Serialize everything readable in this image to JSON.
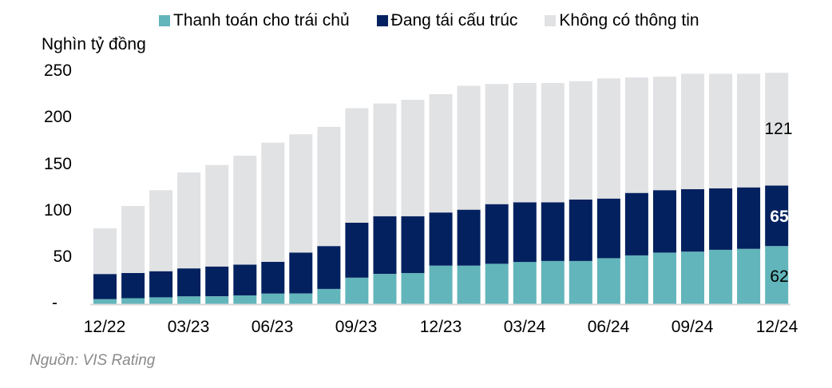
{
  "legend": {
    "items": [
      {
        "label": "Thanh toán cho trái chủ",
        "color": "#62B5BA"
      },
      {
        "label": "Đang tái cấu trúc",
        "color": "#03215F"
      },
      {
        "label": "Không có thông tin",
        "color": "#E1E2E4"
      }
    ]
  },
  "axis": {
    "unit_label": "Nghìn tỷ đồng",
    "y_ticks": [
      "250",
      "200",
      "150",
      "100",
      "50",
      "-"
    ],
    "x_ticks": [
      "12/22",
      "03/23",
      "06/23",
      "09/23",
      "12/23",
      "03/24",
      "06/24",
      "09/24",
      "12/24"
    ]
  },
  "data_labels": {
    "gray": "121",
    "navy": "65",
    "teal": "62"
  },
  "source": "Nguồn: VIS Rating",
  "chart_data": {
    "type": "bar",
    "stacked": true,
    "title": "",
    "xlabel": "",
    "ylabel": "Nghìn tỷ đồng",
    "ylim": [
      0,
      250
    ],
    "yticks": [
      0,
      50,
      100,
      150,
      200,
      250
    ],
    "grid": false,
    "legend_position": "top",
    "categories": [
      "12/22",
      "01/23",
      "02/23",
      "03/23",
      "04/23",
      "05/23",
      "06/23",
      "07/23",
      "08/23",
      "09/23",
      "10/23",
      "11/23",
      "12/23",
      "01/24",
      "02/24",
      "03/24",
      "04/24",
      "05/24",
      "06/24",
      "07/24",
      "08/24",
      "09/24",
      "10/24",
      "11/24",
      "12/24"
    ],
    "series": [
      {
        "name": "Thanh toán cho trái chủ",
        "color": "#62B5BA",
        "values": [
          5,
          6,
          7,
          8,
          8,
          9,
          11,
          11,
          16,
          28,
          32,
          33,
          41,
          41,
          43,
          45,
          46,
          46,
          49,
          52,
          55,
          56,
          58,
          59,
          62
        ]
      },
      {
        "name": "Đang tái cấu trúc",
        "color": "#03215F",
        "values": [
          27,
          27,
          28,
          30,
          32,
          33,
          34,
          44,
          46,
          59,
          62,
          61,
          57,
          60,
          64,
          64,
          63,
          66,
          64,
          67,
          67,
          67,
          66,
          66,
          65
        ]
      },
      {
        "name": "Không có thông tin",
        "color": "#E1E2E4",
        "values": [
          49,
          72,
          87,
          103,
          109,
          117,
          128,
          127,
          128,
          123,
          121,
          125,
          127,
          133,
          129,
          128,
          128,
          127,
          129,
          124,
          122,
          124,
          123,
          122,
          121
        ]
      }
    ],
    "annotations": [
      {
        "category": "12/24",
        "series": "Không có thông tin",
        "text": "121"
      },
      {
        "category": "12/24",
        "series": "Đang tái cấu trúc",
        "text": "65"
      },
      {
        "category": "12/24",
        "series": "Thanh toán cho trái chủ",
        "text": "62"
      }
    ]
  }
}
